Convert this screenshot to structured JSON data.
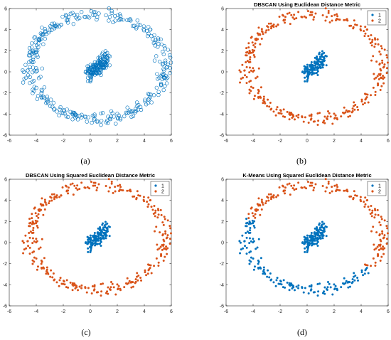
{
  "figure": {
    "captions": [
      "(a)",
      "(b)",
      "(c)",
      "(d)"
    ]
  },
  "colors": {
    "blue": "#0072BD",
    "orange": "#D95319",
    "axis": "#262626"
  },
  "chart_data": [
    {
      "type": "scatter",
      "panel": "(a)",
      "title": "",
      "xlim": [
        -6,
        6
      ],
      "ylim": [
        -6,
        6
      ],
      "xticks": [
        -6,
        -4,
        -2,
        0,
        2,
        4,
        6
      ],
      "yticks": [
        -6,
        -4,
        -2,
        0,
        2,
        4,
        6
      ],
      "xtick_labels": [
        "-6",
        "-4",
        "-2",
        "0",
        "2",
        "4",
        "6"
      ],
      "ytick_labels": [
        "-6",
        "-4",
        "-2",
        "0",
        "2",
        "4",
        "6"
      ],
      "marker": "open-circle",
      "legend": [],
      "series": [
        {
          "cluster": "inner",
          "color": "#0072BD",
          "center": [
            0.6,
            0.6
          ],
          "x_range": [
            -0.3,
            1.5
          ],
          "y_range": [
            -0.4,
            1.6
          ],
          "count": 150
        },
        {
          "cluster": "outer-ring",
          "color": "#0072BD",
          "center": [
            0.5,
            0.5
          ],
          "x_range": [
            -5.1,
            5.9
          ],
          "y_range": [
            -4.9,
            5.9
          ],
          "count": 330
        }
      ]
    },
    {
      "type": "scatter",
      "panel": "(b)",
      "title": "DBSCAN Using Euclidean Distance Metric",
      "xlim": [
        -6,
        6
      ],
      "ylim": [
        -6,
        6
      ],
      "xticks": [
        -6,
        -4,
        -2,
        0,
        2,
        4,
        6
      ],
      "yticks": [
        -6,
        -4,
        -2,
        0,
        2,
        4,
        6
      ],
      "xtick_labels": [
        "-6",
        "-4",
        "-2",
        "0",
        "2",
        "4",
        "6"
      ],
      "ytick_labels": [
        "-6",
        "-4",
        "-2",
        "0",
        "2",
        "4",
        "6"
      ],
      "marker": "filled-dot",
      "legend": [
        {
          "label": "1",
          "color": "#0072BD"
        },
        {
          "label": "2",
          "color": "#D95319"
        }
      ],
      "series": [
        {
          "name": "1",
          "cluster": "inner",
          "color": "#0072BD",
          "center": [
            0.6,
            0.6
          ],
          "x_range": [
            -0.3,
            1.5
          ],
          "y_range": [
            -0.4,
            1.6
          ],
          "count": 150
        },
        {
          "name": "2",
          "cluster": "outer-ring",
          "color": "#D95319",
          "center": [
            0.5,
            0.5
          ],
          "x_range": [
            -5.1,
            5.9
          ],
          "y_range": [
            -4.9,
            5.9
          ],
          "count": 330
        }
      ]
    },
    {
      "type": "scatter",
      "panel": "(c)",
      "title": "DBSCAN Using Squared Euclidean Distance Metric",
      "xlim": [
        -6,
        6
      ],
      "ylim": [
        -6,
        6
      ],
      "xticks": [
        -6,
        -4,
        -2,
        0,
        2,
        4,
        6
      ],
      "yticks": [
        -6,
        -4,
        -2,
        0,
        2,
        4,
        6
      ],
      "xtick_labels": [
        "-6",
        "-4",
        "-2",
        "0",
        "2",
        "4",
        "6"
      ],
      "ytick_labels": [
        "-6",
        "-4",
        "-2",
        "0",
        "2",
        "4",
        "6"
      ],
      "marker": "filled-dot",
      "legend": [
        {
          "label": "1",
          "color": "#0072BD"
        },
        {
          "label": "2",
          "color": "#D95319"
        }
      ],
      "series": [
        {
          "name": "1",
          "cluster": "inner",
          "color": "#0072BD",
          "center": [
            0.6,
            0.6
          ],
          "x_range": [
            -0.3,
            1.5
          ],
          "y_range": [
            -0.4,
            1.6
          ],
          "count": 150
        },
        {
          "name": "2",
          "cluster": "outer-ring",
          "color": "#D95319",
          "center": [
            0.5,
            0.5
          ],
          "x_range": [
            -5.1,
            5.9
          ],
          "y_range": [
            -4.9,
            5.9
          ],
          "count": 330
        }
      ]
    },
    {
      "type": "scatter",
      "panel": "(d)",
      "title": "K-Means Using Squared Euclidean Distance Metric",
      "xlim": [
        -6,
        6
      ],
      "ylim": [
        -6,
        6
      ],
      "xticks": [
        -6,
        -4,
        -2,
        0,
        2,
        4,
        6
      ],
      "yticks": [
        -6,
        -4,
        -2,
        0,
        2,
        4,
        6
      ],
      "xtick_labels": [
        "-6",
        "-4",
        "-2",
        "0",
        "2",
        "4",
        "6"
      ],
      "ytick_labels": [
        "-6",
        "-4",
        "-2",
        "0",
        "2",
        "4",
        "6"
      ],
      "marker": "filled-dot",
      "legend": [
        {
          "label": "1",
          "color": "#0072BD"
        },
        {
          "label": "2",
          "color": "#D95319"
        }
      ],
      "series": [
        {
          "name": "1",
          "cluster": "inner + left/bottom ring",
          "color": "#0072BD",
          "center": [
            0.6,
            0.6
          ],
          "x_range": [
            -5.1,
            5.4
          ],
          "y_range": [
            -4.9,
            3.0
          ],
          "count": 330
        },
        {
          "name": "2",
          "cluster": "top/right ring",
          "color": "#D95319",
          "center": [
            0.5,
            0.5
          ],
          "x_range": [
            -4.5,
            5.9
          ],
          "y_range": [
            -3.0,
            5.9
          ],
          "count": 150
        }
      ]
    }
  ]
}
